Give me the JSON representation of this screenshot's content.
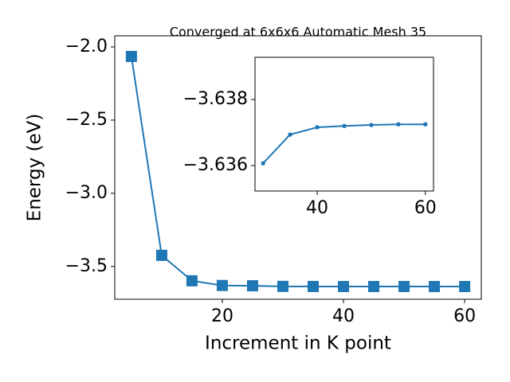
{
  "chart_data": [
    {
      "type": "line",
      "title": "Converged at 6x6x6 Automatic Mesh 35",
      "x_label": "Increment in K point",
      "y_label": "Energy (eV)",
      "x": [
        5,
        10,
        15,
        20,
        25,
        30,
        35,
        40,
        45,
        50,
        55,
        60
      ],
      "series": [
        {
          "color": "#1f77b4",
          "marker": "square",
          "values": [
            -2.065,
            -3.424,
            -3.598,
            -3.63,
            -3.632,
            -3.6361,
            -3.6369,
            -3.6372,
            -3.6372,
            -3.6372,
            -3.6373,
            -3.6373
          ]
        }
      ],
      "xlim": [
        2.25,
        62.75
      ],
      "ylim": [
        -3.724,
        -1.924
      ],
      "xticks": [
        20,
        40,
        60
      ],
      "yticks": [
        {
          "value": -3.5,
          "label": "−3.5"
        },
        {
          "value": -3.0,
          "label": "−3.0"
        },
        {
          "value": -2.5,
          "label": "−2.5"
        },
        {
          "value": -2.0,
          "label": "−2.0"
        }
      ]
    },
    {
      "type": "line",
      "x": [
        30,
        35,
        40,
        45,
        50,
        55,
        60
      ],
      "series": [
        {
          "color": "#1f77b4",
          "marker": "circle",
          "values": [
            -3.63607,
            -3.63694,
            -3.63716,
            -3.6372,
            -3.63723,
            -3.63725,
            -3.63725
          ]
        }
      ],
      "xlim": [
        28.5,
        61.5
      ],
      "ylim": [
        -3.63523,
        -3.63928
      ],
      "xticks": [
        40,
        60
      ],
      "yticks": [
        {
          "value": -3.636,
          "label": "−3.636"
        },
        {
          "value": -3.638,
          "label": "−3.638"
        }
      ]
    }
  ]
}
